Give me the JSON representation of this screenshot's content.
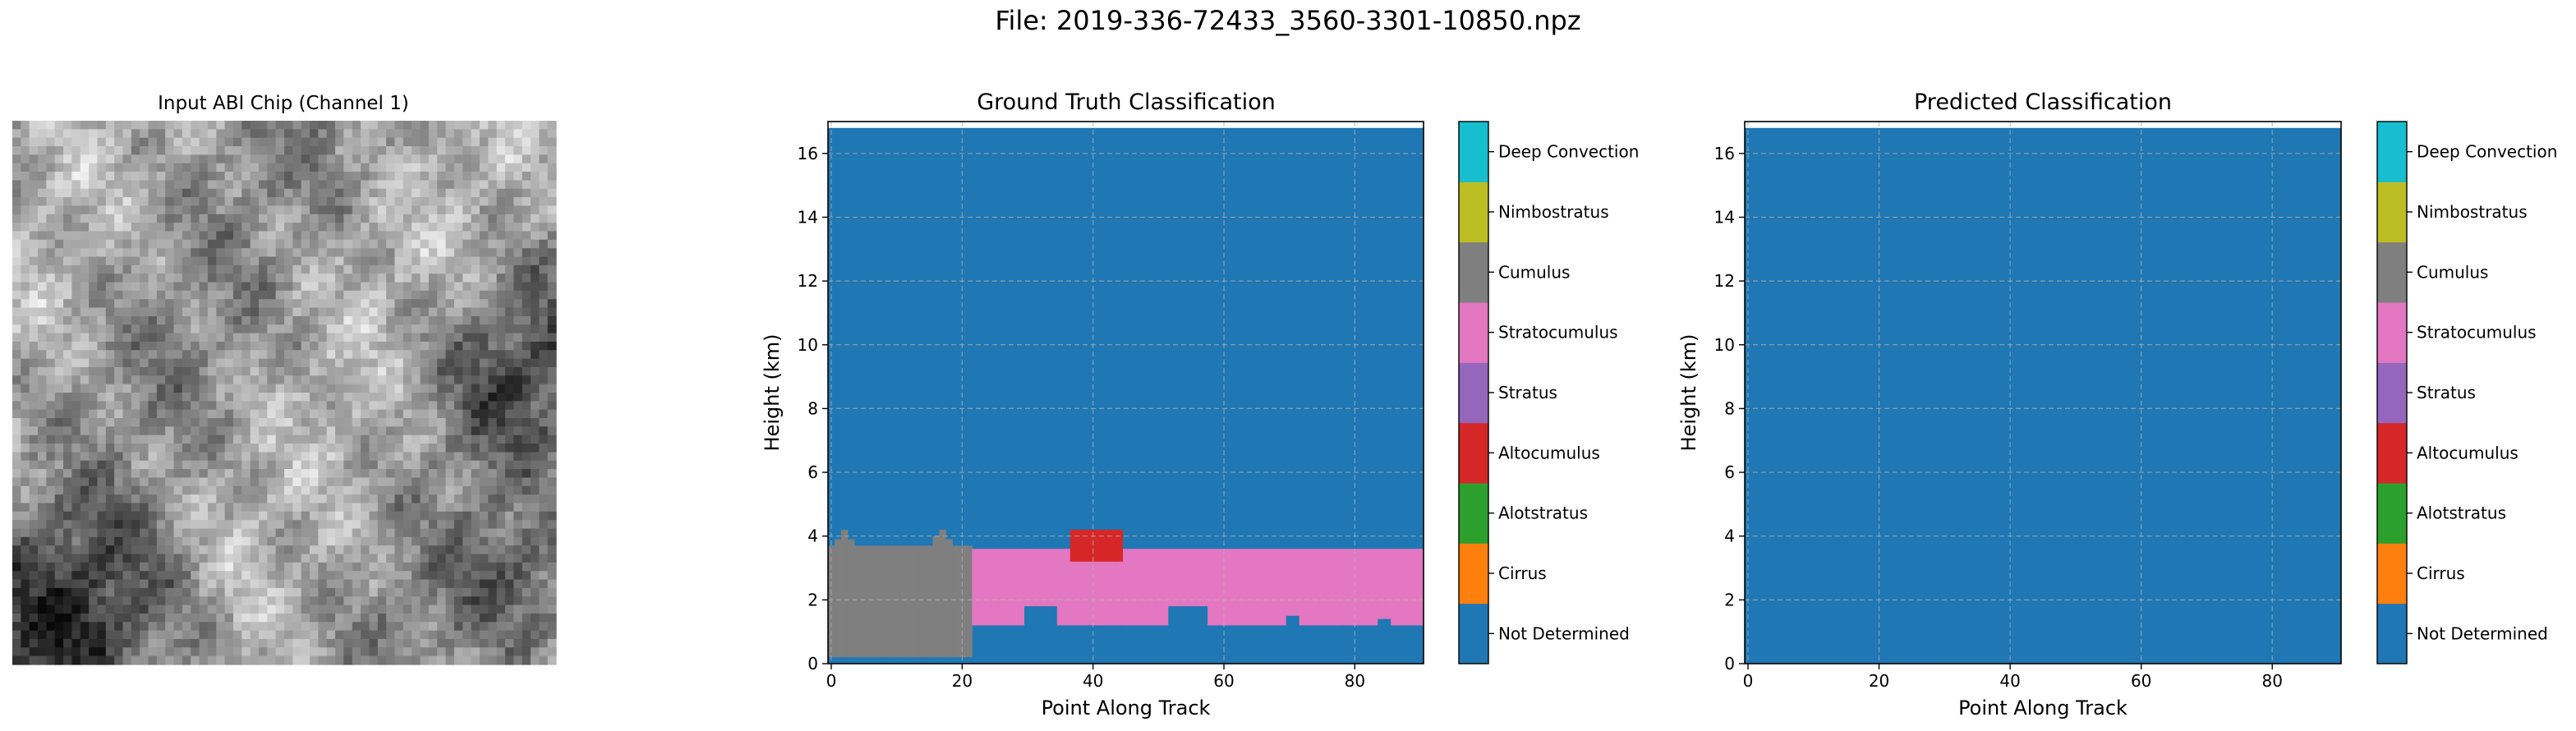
{
  "suptitle": "File: 2019-336-72433_3560-3301-10850.npz",
  "colors": {
    "Not Determined": "#1f77b4",
    "Cirrus": "#ff7f0e",
    "Alotstratus": "#2ca02c",
    "Altocumulus": "#d62728",
    "Stratus": "#9467bd",
    "Stratocumulus": "#e377c2",
    "Cumulus": "#7f7f7f",
    "Nimbostratus": "#bcbd22",
    "Deep Convection": "#17becf"
  },
  "chart_data": [
    {
      "type": "heatmap",
      "title": "Input ABI Chip (Channel 1)",
      "colormap": "grayscale",
      "axes_visible": false
    },
    {
      "type": "heatmap",
      "title": "Ground Truth Classification",
      "xlabel": "Point Along Track",
      "ylabel": "Height (km)",
      "xlim": [
        -0.5,
        90.5
      ],
      "ylim": [
        0,
        17
      ],
      "xticks": [
        0,
        20,
        40,
        60,
        80
      ],
      "yticks": [
        0,
        2,
        4,
        6,
        8,
        10,
        12,
        14,
        16
      ],
      "grid": true,
      "data_top_km": 16.8,
      "background_class": "Not Determined",
      "regions": [
        {
          "class": "Cumulus",
          "x_start": 0,
          "x_end": 22,
          "columns_top_km": [
            3.7,
            3.9,
            4.2,
            3.9,
            3.7,
            3.7,
            3.7,
            3.7,
            3.7,
            3.7,
            3.7,
            3.7,
            3.7,
            3.7,
            3.7,
            3.7,
            4.0,
            4.2,
            3.9,
            3.7,
            3.7,
            3.7
          ],
          "bottom_km": 0.2
        },
        {
          "class": "Stratocumulus",
          "x_start": 22,
          "x_end": 91,
          "top_km": 3.6,
          "bottom_km": 1.2
        },
        {
          "class": "Altocumulus",
          "x_start": 37,
          "x_end": 45,
          "top_km": 4.2,
          "bottom_km": 3.2
        }
      ],
      "colorbar": [
        "Not Determined",
        "Cirrus",
        "Alotstratus",
        "Altocumulus",
        "Stratus",
        "Stratocumulus",
        "Cumulus",
        "Nimbostratus",
        "Deep Convection"
      ]
    },
    {
      "type": "heatmap",
      "title": "Predicted Classification",
      "xlabel": "Point Along Track",
      "ylabel": "Height (km)",
      "xlim": [
        -0.5,
        90.5
      ],
      "ylim": [
        0,
        17
      ],
      "xticks": [
        0,
        20,
        40,
        60,
        80
      ],
      "yticks": [
        0,
        2,
        4,
        6,
        8,
        10,
        12,
        14,
        16
      ],
      "grid": true,
      "data_top_km": 16.8,
      "background_class": "Not Determined",
      "regions": [],
      "colorbar": [
        "Not Determined",
        "Cirrus",
        "Alotstratus",
        "Altocumulus",
        "Stratus",
        "Stratocumulus",
        "Cumulus",
        "Nimbostratus",
        "Deep Convection"
      ]
    }
  ]
}
